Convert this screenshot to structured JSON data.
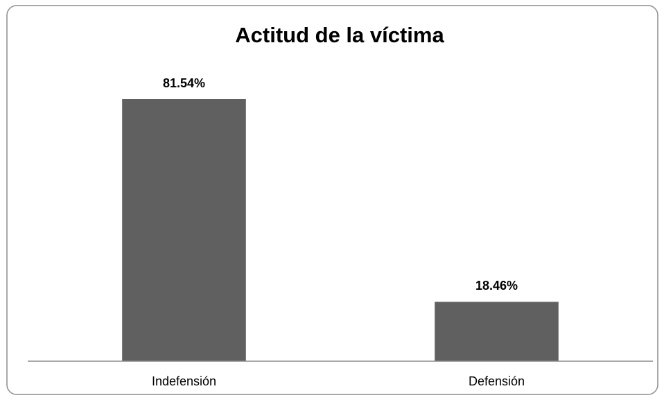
{
  "chart_data": {
    "type": "bar",
    "title": "Actitud de la víctima",
    "categories": [
      "Indefensión",
      "Defensión"
    ],
    "values": [
      81.54,
      18.46
    ],
    "value_labels": [
      "81.54%",
      "18.46%"
    ],
    "color": "#606060"
  }
}
